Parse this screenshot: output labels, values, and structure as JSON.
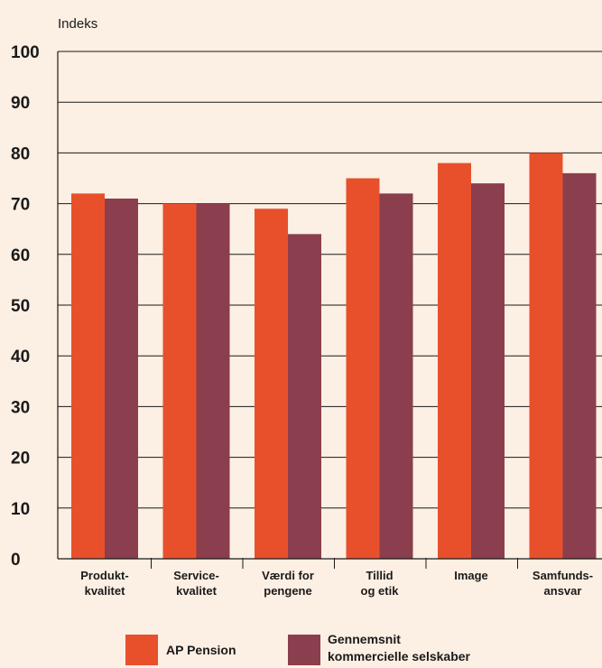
{
  "chart_data": {
    "type": "bar",
    "ylabel": "Indeks",
    "ylim": [
      0,
      100
    ],
    "yticks": [
      0,
      10,
      20,
      30,
      40,
      50,
      60,
      70,
      80,
      90,
      100
    ],
    "grid": true,
    "legend_position": "bottom",
    "categories": [
      [
        "Produkt-",
        "kvalitet"
      ],
      [
        "Service-",
        "kvalitet"
      ],
      [
        "Værdi for",
        "pengene"
      ],
      [
        "Tillid",
        "og etik"
      ],
      [
        "Image"
      ],
      [
        "Samfunds-",
        "ansvar"
      ]
    ],
    "series": [
      {
        "name": "AP Pension",
        "color": "#e8502c",
        "values": [
          72,
          70,
          69,
          75,
          78,
          80
        ]
      },
      {
        "name_lines": [
          "Gennemsnit",
          "kommercielle selskaber"
        ],
        "color": "#8a3e4e",
        "values": [
          71,
          70,
          64,
          72,
          74,
          76
        ]
      }
    ]
  }
}
